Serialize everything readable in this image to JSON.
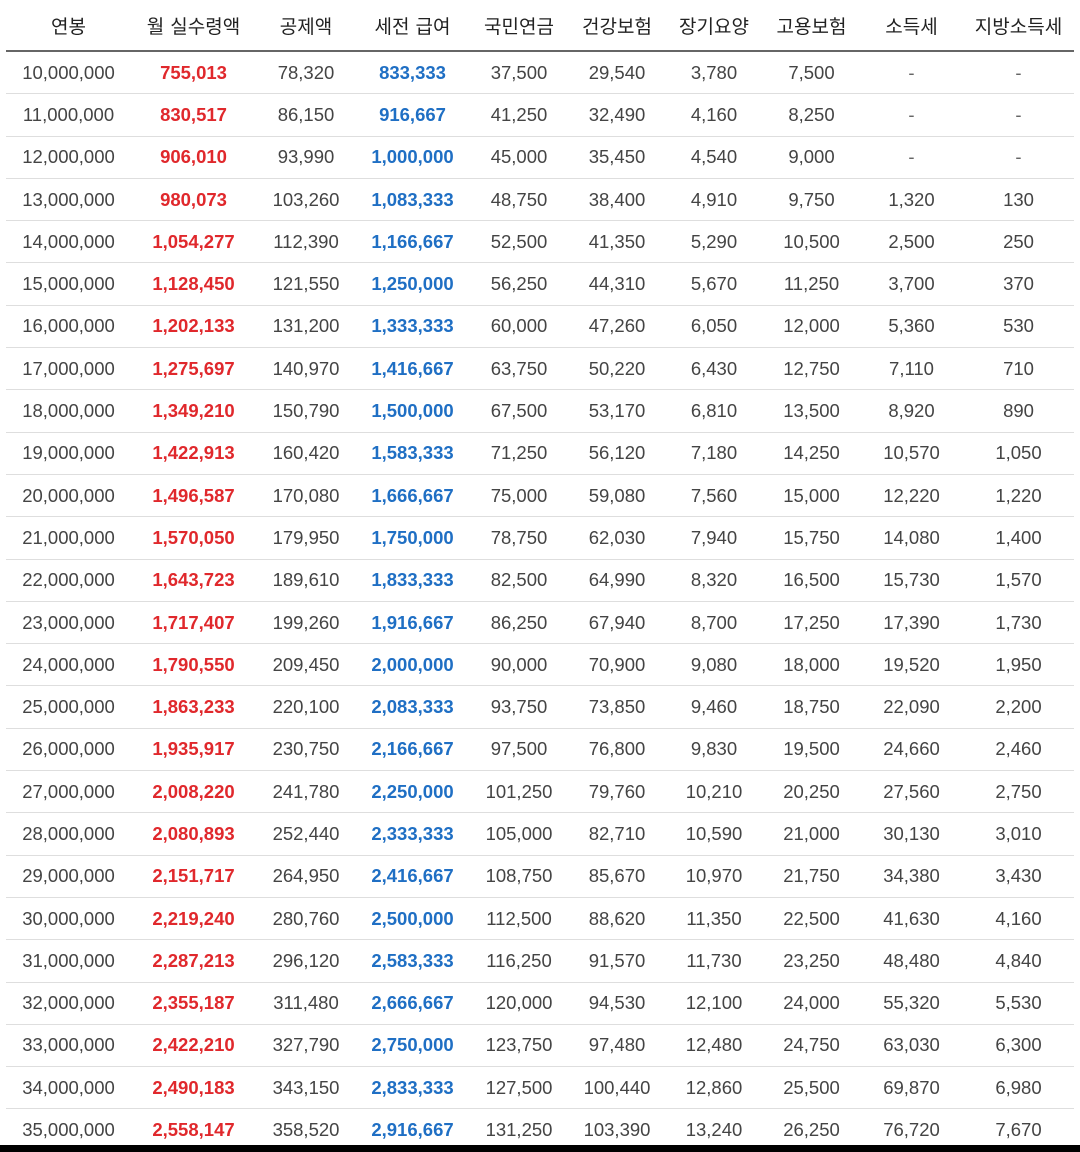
{
  "headers": [
    "연봉",
    "월 실수령액",
    "공제액",
    "세전 급여",
    "국민연금",
    "건강보험",
    "장기요양",
    "고용보험",
    "소득세",
    "지방소득세"
  ],
  "colors": {
    "net": "#e0282c",
    "gross": "#1f6fc4"
  },
  "rows": [
    [
      "10,000,000",
      "755,013",
      "78,320",
      "833,333",
      "37,500",
      "29,540",
      "3,780",
      "7,500",
      "-",
      "-"
    ],
    [
      "11,000,000",
      "830,517",
      "86,150",
      "916,667",
      "41,250",
      "32,490",
      "4,160",
      "8,250",
      "-",
      "-"
    ],
    [
      "12,000,000",
      "906,010",
      "93,990",
      "1,000,000",
      "45,000",
      "35,450",
      "4,540",
      "9,000",
      "-",
      "-"
    ],
    [
      "13,000,000",
      "980,073",
      "103,260",
      "1,083,333",
      "48,750",
      "38,400",
      "4,910",
      "9,750",
      "1,320",
      "130"
    ],
    [
      "14,000,000",
      "1,054,277",
      "112,390",
      "1,166,667",
      "52,500",
      "41,350",
      "5,290",
      "10,500",
      "2,500",
      "250"
    ],
    [
      "15,000,000",
      "1,128,450",
      "121,550",
      "1,250,000",
      "56,250",
      "44,310",
      "5,670",
      "11,250",
      "3,700",
      "370"
    ],
    [
      "16,000,000",
      "1,202,133",
      "131,200",
      "1,333,333",
      "60,000",
      "47,260",
      "6,050",
      "12,000",
      "5,360",
      "530"
    ],
    [
      "17,000,000",
      "1,275,697",
      "140,970",
      "1,416,667",
      "63,750",
      "50,220",
      "6,430",
      "12,750",
      "7,110",
      "710"
    ],
    [
      "18,000,000",
      "1,349,210",
      "150,790",
      "1,500,000",
      "67,500",
      "53,170",
      "6,810",
      "13,500",
      "8,920",
      "890"
    ],
    [
      "19,000,000",
      "1,422,913",
      "160,420",
      "1,583,333",
      "71,250",
      "56,120",
      "7,180",
      "14,250",
      "10,570",
      "1,050"
    ],
    [
      "20,000,000",
      "1,496,587",
      "170,080",
      "1,666,667",
      "75,000",
      "59,080",
      "7,560",
      "15,000",
      "12,220",
      "1,220"
    ],
    [
      "21,000,000",
      "1,570,050",
      "179,950",
      "1,750,000",
      "78,750",
      "62,030",
      "7,940",
      "15,750",
      "14,080",
      "1,400"
    ],
    [
      "22,000,000",
      "1,643,723",
      "189,610",
      "1,833,333",
      "82,500",
      "64,990",
      "8,320",
      "16,500",
      "15,730",
      "1,570"
    ],
    [
      "23,000,000",
      "1,717,407",
      "199,260",
      "1,916,667",
      "86,250",
      "67,940",
      "8,700",
      "17,250",
      "17,390",
      "1,730"
    ],
    [
      "24,000,000",
      "1,790,550",
      "209,450",
      "2,000,000",
      "90,000",
      "70,900",
      "9,080",
      "18,000",
      "19,520",
      "1,950"
    ],
    [
      "25,000,000",
      "1,863,233",
      "220,100",
      "2,083,333",
      "93,750",
      "73,850",
      "9,460",
      "18,750",
      "22,090",
      "2,200"
    ],
    [
      "26,000,000",
      "1,935,917",
      "230,750",
      "2,166,667",
      "97,500",
      "76,800",
      "9,830",
      "19,500",
      "24,660",
      "2,460"
    ],
    [
      "27,000,000",
      "2,008,220",
      "241,780",
      "2,250,000",
      "101,250",
      "79,760",
      "10,210",
      "20,250",
      "27,560",
      "2,750"
    ],
    [
      "28,000,000",
      "2,080,893",
      "252,440",
      "2,333,333",
      "105,000",
      "82,710",
      "10,590",
      "21,000",
      "30,130",
      "3,010"
    ],
    [
      "29,000,000",
      "2,151,717",
      "264,950",
      "2,416,667",
      "108,750",
      "85,670",
      "10,970",
      "21,750",
      "34,380",
      "3,430"
    ],
    [
      "30,000,000",
      "2,219,240",
      "280,760",
      "2,500,000",
      "112,500",
      "88,620",
      "11,350",
      "22,500",
      "41,630",
      "4,160"
    ],
    [
      "31,000,000",
      "2,287,213",
      "296,120",
      "2,583,333",
      "116,250",
      "91,570",
      "11,730",
      "23,250",
      "48,480",
      "4,840"
    ],
    [
      "32,000,000",
      "2,355,187",
      "311,480",
      "2,666,667",
      "120,000",
      "94,530",
      "12,100",
      "24,000",
      "55,320",
      "5,530"
    ],
    [
      "33,000,000",
      "2,422,210",
      "327,790",
      "2,750,000",
      "123,750",
      "97,480",
      "12,480",
      "24,750",
      "63,030",
      "6,300"
    ],
    [
      "34,000,000",
      "2,490,183",
      "343,150",
      "2,833,333",
      "127,500",
      "100,440",
      "12,860",
      "25,500",
      "69,870",
      "6,980"
    ],
    [
      "35,000,000",
      "2,558,147",
      "358,520",
      "2,916,667",
      "131,250",
      "103,390",
      "13,240",
      "26,250",
      "76,720",
      "7,670"
    ]
  ]
}
